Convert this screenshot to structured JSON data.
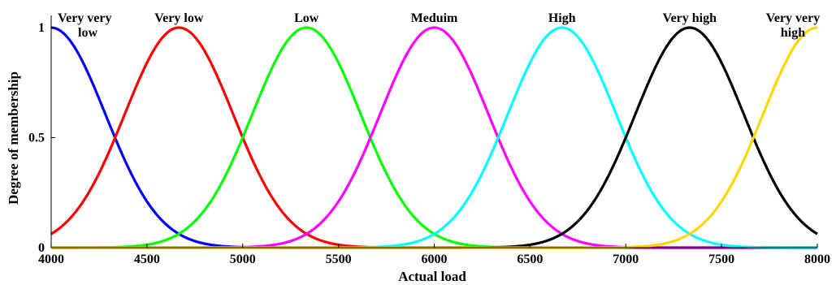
{
  "chart_data": {
    "type": "line",
    "xlabel": "Actual load",
    "ylabel": "Degree of membership",
    "xlim": [
      4000,
      8000
    ],
    "ylim": [
      0,
      1
    ],
    "x_ticks": [
      "4000",
      "4500",
      "5000",
      "5500",
      "6000",
      "6500",
      "7000",
      "7500",
      "8000"
    ],
    "y_ticks": [
      "0",
      "0.5",
      "1"
    ],
    "grid": false,
    "series": [
      {
        "name": "Very very low",
        "label_lines": [
          "Very very",
          "low"
        ],
        "center": 4000,
        "sigma": 283,
        "color": "#0000ff"
      },
      {
        "name": "Very low",
        "label_lines": [
          "Very low"
        ],
        "center": 4667,
        "sigma": 283,
        "color": "#ff0000"
      },
      {
        "name": "Low",
        "label_lines": [
          "Low"
        ],
        "center": 5333,
        "sigma": 283,
        "color": "#00ff00"
      },
      {
        "name": "Meduim",
        "label_lines": [
          "Meduim"
        ],
        "center": 6000,
        "sigma": 283,
        "color": "#ff00ff"
      },
      {
        "name": "High",
        "label_lines": [
          "High"
        ],
        "center": 6667,
        "sigma": 283,
        "color": "#00ffff"
      },
      {
        "name": "Very high",
        "label_lines": [
          "Very high"
        ],
        "center": 7333,
        "sigma": 283,
        "color": "#000000"
      },
      {
        "name": "Very very high",
        "label_lines": [
          "Very very",
          "high"
        ],
        "center": 8000,
        "sigma": 283,
        "color": "#ffd700"
      }
    ]
  }
}
